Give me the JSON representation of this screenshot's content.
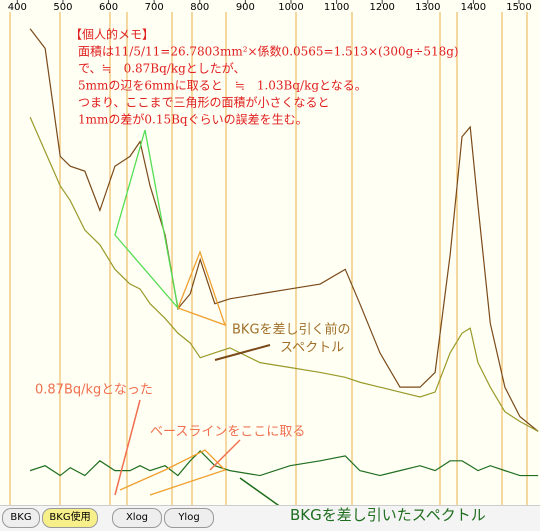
{
  "chart_data": {
    "type": "line",
    "x": [
      428,
      461,
      494,
      516,
      548,
      581,
      614,
      647,
      669,
      691,
      724,
      752,
      779,
      801,
      833,
      866,
      932,
      998,
      1064,
      1119,
      1151,
      1195,
      1239,
      1283,
      1316,
      1349,
      1375,
      1393,
      1410,
      1437,
      1469,
      1502,
      1542
    ],
    "xlim": [
      362,
      1546
    ],
    "xticks": [
      400,
      500,
      600,
      700,
      800,
      900,
      1000,
      1100,
      1200,
      1300,
      1400,
      1500
    ],
    "ylim": [
      0,
      500
    ],
    "series": [
      {
        "name": "BKGを差し引く前のスペクトル",
        "color": "#7a4a1a",
        "values": [
          485,
          465,
          355,
          345,
          340,
          300,
          345,
          355,
          370,
          325,
          275,
          200,
          215,
          250,
          205,
          210,
          215,
          220,
          225,
          240,
          205,
          155,
          120,
          120,
          135,
          255,
          375,
          385,
          305,
          185,
          120,
          90,
          75
        ]
      },
      {
        "color": "#9a9a2a",
        "values": [
          395,
          360,
          325,
          310,
          280,
          265,
          240,
          225,
          220,
          205,
          190,
          175,
          165,
          150,
          155,
          160,
          145,
          140,
          135,
          130,
          125,
          120,
          115,
          110,
          115,
          155,
          175,
          180,
          145,
          120,
          95,
          85,
          75
        ]
      },
      {
        "name": "BKGを差し引いたスペクトル",
        "color": "#1f6e1f",
        "values": [
          35,
          40,
          30,
          38,
          30,
          45,
          35,
          35,
          40,
          35,
          40,
          30,
          45,
          55,
          40,
          35,
          30,
          40,
          45,
          50,
          35,
          30,
          35,
          40,
          35,
          45,
          45,
          40,
          35,
          40,
          35,
          30,
          30
        ]
      }
    ],
    "memo": [
      "【個人的メモ】",
      "面積は11/5/11=26.7803mm²×係数0.0565=1.513×(300g÷518g)",
      "で、≒　0.87Bq/kgとしたが、",
      "5mmの辺を6mmに取ると　≒　1.03Bq/kgとなる。",
      "つまり、ここまで三角形の面積が小さくなると",
      "1mmの差が0.15Bqぐらいの誤差を生む。"
    ],
    "annotations": [
      "BKGを差し引く前の",
      "スペクトル",
      "0.87Bq/kgとなった",
      "ベースラインをここに取る"
    ],
    "buttons": [
      "BKG",
      "BKG使用",
      "Xlog",
      "Ylog"
    ]
  }
}
